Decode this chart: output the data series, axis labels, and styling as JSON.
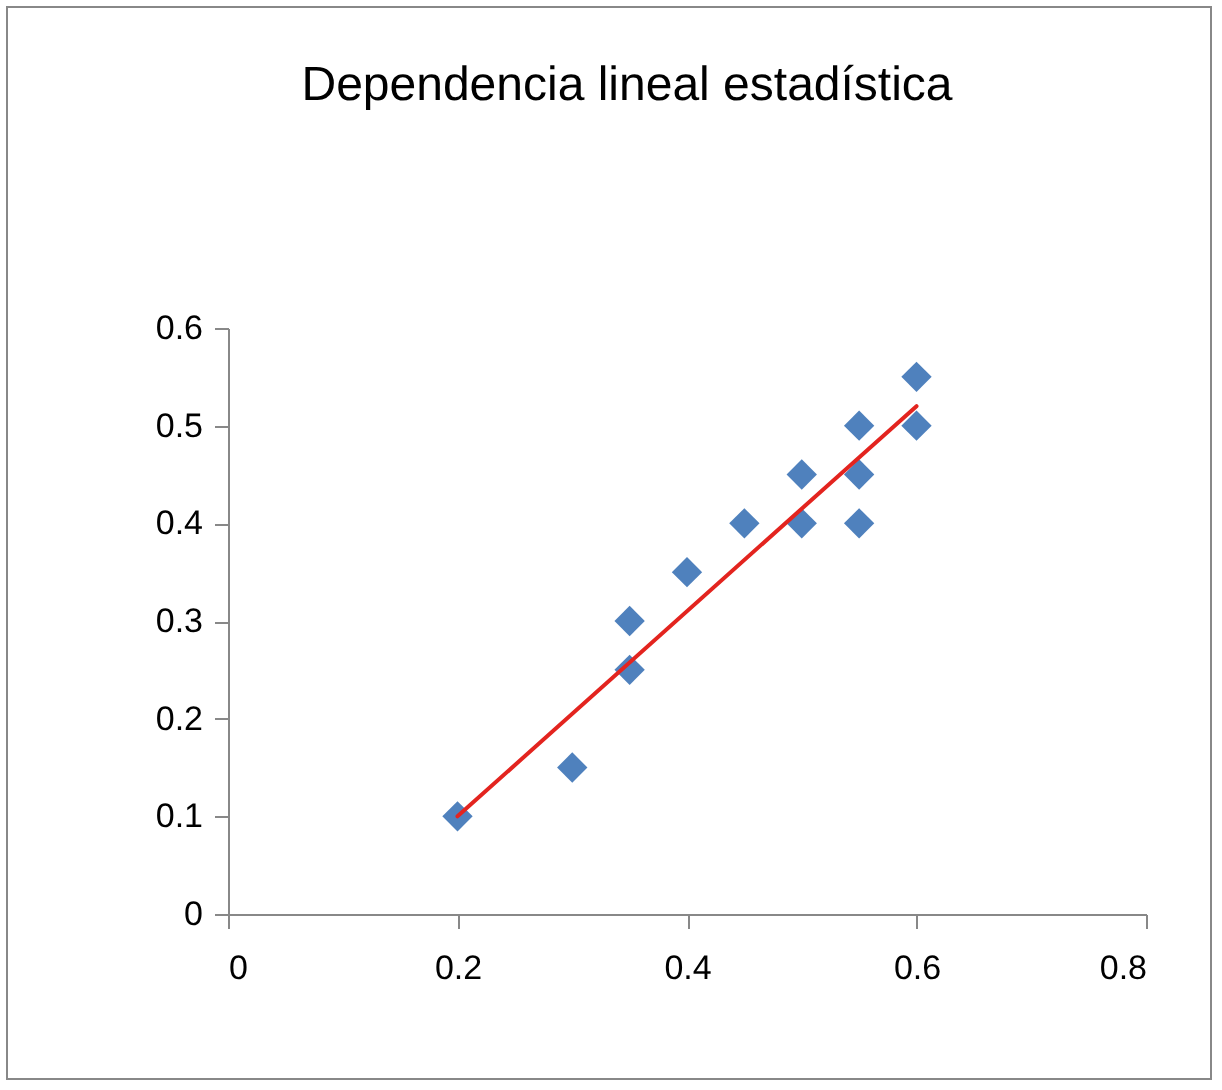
{
  "chart_data": {
    "type": "scatter",
    "title": "Dependencia lineal estadística",
    "xlim": [
      0,
      0.8
    ],
    "xticks": [
      0,
      0.2,
      0.4,
      0.6,
      0.8
    ],
    "ylim": [
      0,
      0.6
    ],
    "yticks": [
      0,
      0.1,
      0.2,
      0.3,
      0.4,
      0.5,
      0.6
    ],
    "series": [
      {
        "marker": "diamond",
        "color": "#4f81bd",
        "x": [
          0.2,
          0.3,
          0.35,
          0.35,
          0.4,
          0.45,
          0.5,
          0.5,
          0.55,
          0.55,
          0.55,
          0.6,
          0.6
        ],
        "values": [
          0.1,
          0.15,
          0.25,
          0.3,
          0.35,
          0.4,
          0.4,
          0.45,
          0.4,
          0.45,
          0.5,
          0.5,
          0.55
        ]
      },
      {
        "type": "line",
        "marker": "none",
        "color": "#e3241f",
        "x": [
          0.2,
          0.6
        ],
        "values": [
          0.1,
          0.52
        ]
      }
    ]
  }
}
